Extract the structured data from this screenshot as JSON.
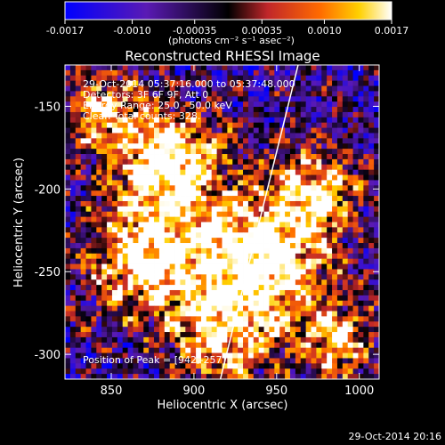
{
  "colorbar": {
    "ticks": [
      "-0.0017",
      "-0.0010",
      "-0.00035",
      "0.00035",
      "0.0010",
      "0.0017"
    ],
    "tick_values": [
      -0.0017,
      -0.001,
      -0.00035,
      0.00035,
      0.001,
      0.0017
    ],
    "units": "(photons cm⁻² s⁻¹ asec⁻²)",
    "min": -0.0017,
    "max": 0.0017
  },
  "chart_data": {
    "type": "heatmap",
    "title": "Reconstructed RHESSI Image",
    "xlabel": "Heliocentric X (arcsec)",
    "ylabel": "Heliocentric Y (arcsec)",
    "xlim": [
      822,
      1012
    ],
    "ylim": [
      -315,
      -125
    ],
    "xticks": [
      850,
      900,
      950,
      1000
    ],
    "yticks": [
      -150,
      -200,
      -250,
      -300
    ],
    "grid": false,
    "limb_line": [
      [
        916,
        -315
      ],
      [
        963,
        -125
      ]
    ],
    "peak": {
      "x": 942,
      "y": -257
    },
    "annotations": {
      "time": "29-Oct-2014 05:37:16.000 to 05:37:48.000",
      "detectors": "Detectors: 3F 6F 9F, Att 0",
      "energy": "Energy Range: 25.0 - 50.0 keV",
      "method": "Clean     Total counts: 328.",
      "peak": "Position of Peak = [942,-257]"
    }
  },
  "footer": {
    "timestamp": "29-Oct-2014 20:16"
  }
}
